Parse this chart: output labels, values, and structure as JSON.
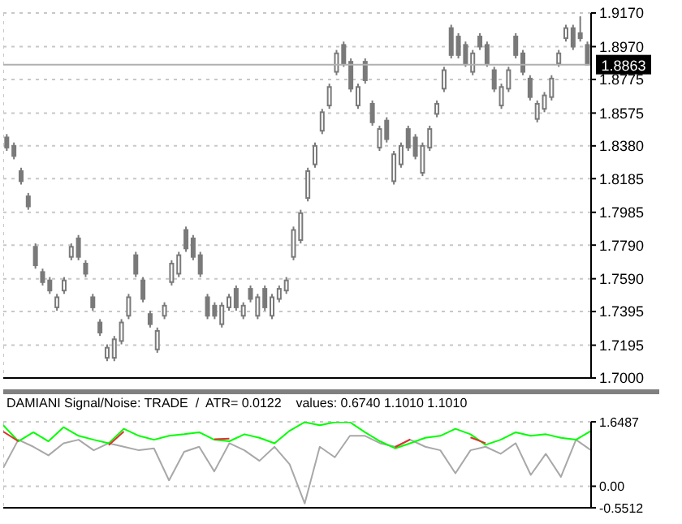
{
  "chart_data": [
    {
      "type": "candlestick",
      "color": "#7a7a7a",
      "categories": [
        null,
        null,
        null,
        null,
        null,
        null,
        null,
        null,
        null,
        null,
        null,
        null,
        null,
        null,
        null,
        null,
        null,
        null,
        null,
        null,
        null,
        null,
        null,
        null,
        null,
        null,
        null,
        null,
        null,
        null,
        null,
        null,
        null,
        null,
        null,
        null,
        null,
        null,
        null,
        null,
        null,
        null,
        null,
        null,
        null,
        null,
        null,
        null,
        null,
        null,
        null,
        null,
        null,
        null,
        null,
        null,
        null,
        null,
        null,
        null,
        null,
        null,
        null,
        null,
        null,
        null,
        null,
        null,
        null,
        null,
        null,
        null,
        null,
        null,
        null,
        null,
        null,
        null,
        null,
        null,
        null,
        null
      ],
      "ohlc": [
        [
          1.843,
          1.845,
          1.835,
          1.837
        ],
        [
          1.838,
          1.84,
          1.83,
          1.832
        ],
        [
          1.823,
          1.825,
          1.815,
          1.817
        ],
        [
          1.808,
          1.81,
          1.8,
          1.802
        ],
        [
          1.778,
          1.78,
          1.765,
          1.767
        ],
        [
          1.763,
          1.765,
          1.755,
          1.757
        ],
        [
          1.758,
          1.76,
          1.75,
          1.752
        ],
        [
          1.742,
          1.75,
          1.74,
          1.748
        ],
        [
          1.752,
          1.76,
          1.75,
          1.758
        ],
        [
          1.772,
          1.78,
          1.77,
          1.778
        ],
        [
          1.783,
          1.785,
          1.77,
          1.772
        ],
        [
          1.768,
          1.77,
          1.76,
          1.762
        ],
        [
          1.748,
          1.75,
          1.74,
          1.742
        ],
        [
          1.733,
          1.735,
          1.725,
          1.727
        ],
        [
          1.712,
          1.72,
          1.71,
          1.718
        ],
        [
          1.712,
          1.725,
          1.71,
          1.723
        ],
        [
          1.722,
          1.735,
          1.72,
          1.733
        ],
        [
          1.737,
          1.75,
          1.735,
          1.748
        ],
        [
          1.773,
          1.775,
          1.76,
          1.762
        ],
        [
          1.758,
          1.76,
          1.745,
          1.747
        ],
        [
          1.738,
          1.74,
          1.73,
          1.732
        ],
        [
          1.717,
          1.73,
          1.715,
          1.728
        ],
        [
          1.737,
          1.745,
          1.735,
          1.743
        ],
        [
          1.757,
          1.77,
          1.755,
          1.768
        ],
        [
          1.762,
          1.775,
          1.76,
          1.773
        ],
        [
          1.788,
          1.79,
          1.775,
          1.777
        ],
        [
          1.783,
          1.785,
          1.77,
          1.772
        ],
        [
          1.773,
          1.775,
          1.76,
          1.762
        ],
        [
          1.748,
          1.75,
          1.735,
          1.737
        ],
        [
          1.743,
          1.745,
          1.735,
          1.737
        ],
        [
          1.732,
          1.745,
          1.73,
          1.743
        ],
        [
          1.742,
          1.75,
          1.74,
          1.748
        ],
        [
          1.753,
          1.755,
          1.74,
          1.742
        ],
        [
          1.737,
          1.745,
          1.735,
          1.743
        ],
        [
          1.753,
          1.755,
          1.745,
          1.747
        ],
        [
          1.737,
          1.75,
          1.735,
          1.748
        ],
        [
          1.753,
          1.755,
          1.74,
          1.742
        ],
        [
          1.737,
          1.75,
          1.735,
          1.748
        ],
        [
          1.747,
          1.755,
          1.745,
          1.753
        ],
        [
          1.752,
          1.76,
          1.75,
          1.758
        ],
        [
          1.772,
          1.79,
          1.77,
          1.788
        ],
        [
          1.782,
          1.8,
          1.78,
          1.798
        ],
        [
          1.807,
          1.825,
          1.805,
          1.823
        ],
        [
          1.827,
          1.84,
          1.825,
          1.838
        ],
        [
          1.847,
          1.86,
          1.845,
          1.858
        ],
        [
          1.862,
          1.875,
          1.86,
          1.873
        ],
        [
          1.882,
          1.895,
          1.88,
          1.893
        ],
        [
          1.898,
          1.9,
          1.885,
          1.887
        ],
        [
          1.888,
          1.89,
          1.87,
          1.872
        ],
        [
          1.862,
          1.875,
          1.86,
          1.873
        ],
        [
          1.888,
          1.89,
          1.875,
          1.877
        ],
        [
          1.863,
          1.865,
          1.85,
          1.852
        ],
        [
          1.837,
          1.85,
          1.835,
          1.848
        ],
        [
          1.853,
          1.855,
          1.84,
          1.842
        ],
        [
          1.817,
          1.835,
          1.815,
          1.833
        ],
        [
          1.827,
          1.84,
          1.825,
          1.838
        ],
        [
          1.848,
          1.85,
          1.835,
          1.837
        ],
        [
          1.843,
          1.845,
          1.83,
          1.832
        ],
        [
          1.822,
          1.84,
          1.82,
          1.838
        ],
        [
          1.837,
          1.85,
          1.835,
          1.848
        ],
        [
          1.857,
          1.865,
          1.855,
          1.863
        ],
        [
          1.872,
          1.885,
          1.87,
          1.883
        ],
        [
          1.908,
          1.91,
          1.89,
          1.892
        ],
        [
          1.903,
          1.905,
          1.89,
          1.892
        ],
        [
          1.898,
          1.9,
          1.885,
          1.887
        ],
        [
          1.882,
          1.895,
          1.88,
          1.893
        ],
        [
          1.903,
          1.905,
          1.895,
          1.897
        ],
        [
          1.898,
          1.9,
          1.885,
          1.887
        ],
        [
          1.883,
          1.885,
          1.87,
          1.872
        ],
        [
          1.862,
          1.875,
          1.86,
          1.873
        ],
        [
          1.872,
          1.885,
          1.87,
          1.883
        ],
        [
          1.903,
          1.905,
          1.89,
          1.892
        ],
        [
          1.893,
          1.895,
          1.88,
          1.882
        ],
        [
          1.878,
          1.88,
          1.865,
          1.867
        ],
        [
          1.854,
          1.865,
          1.852,
          1.863
        ],
        [
          1.86,
          1.87,
          1.858,
          1.868
        ],
        [
          1.867,
          1.88,
          1.865,
          1.878
        ],
        [
          1.887,
          1.895,
          1.885,
          1.893
        ],
        [
          1.902,
          1.91,
          1.9,
          1.908
        ],
        [
          1.908,
          1.91,
          1.895,
          1.897
        ],
        [
          1.905,
          1.915,
          1.9,
          1.902
        ],
        [
          1.898,
          1.9,
          1.8863,
          1.8863
        ]
      ],
      "ylim": [
        1.7,
        1.917
      ],
      "yticks": [
        {
          "value": 1.917,
          "label": "1.9170"
        },
        {
          "value": 1.897,
          "label": "1.8970"
        },
        {
          "value": 1.8775,
          "label": "1.8775"
        },
        {
          "value": 1.8575,
          "label": "1.8575"
        },
        {
          "value": 1.838,
          "label": "1.8380"
        },
        {
          "value": 1.8185,
          "label": "1.8185"
        },
        {
          "value": 1.7985,
          "label": "1.7985"
        },
        {
          "value": 1.779,
          "label": "1.7790"
        },
        {
          "value": 1.759,
          "label": "1.7590"
        },
        {
          "value": 1.7395,
          "label": "1.7395"
        },
        {
          "value": 1.7195,
          "label": "1.7195"
        },
        {
          "value": 1.7,
          "label": "1.7000"
        }
      ],
      "ref_lines": [
        {
          "axis": "y",
          "value": 1.8863,
          "label": "1.8863",
          "color": "#b0b0b0"
        }
      ],
      "grid": true,
      "tick_labels": "y"
    },
    {
      "type": "line",
      "title": "DAMIANI Signal/Noise: TRADE  /  ATR= 0.0122    values: 0.6740 1.1010 1.1010",
      "categories": [
        null,
        null,
        null,
        null,
        null,
        null,
        null,
        null,
        null,
        null,
        null,
        null,
        null,
        null,
        null,
        null,
        null,
        null,
        null,
        null,
        null,
        null,
        null,
        null,
        null,
        null,
        null,
        null,
        null,
        null,
        null,
        null,
        null,
        null,
        null,
        null,
        null,
        null,
        null,
        null
      ],
      "series": [
        {
          "color": "#a8a8a8",
          "values": [
            0.47,
            1.19,
            1.01,
            0.79,
            1.1,
            1.19,
            0.92,
            1.1,
            1.01,
            0.92,
            0.97,
            0.15,
            0.88,
            1.01,
            0.38,
            1.1,
            0.92,
            0.65,
            1.01,
            0.56,
            -0.44,
            1.01,
            0.74,
            1.29,
            1.29,
            1.1,
            1.01,
            1.19,
            1.01,
            0.92,
            0.33,
            0.92,
            1.01,
            0.83,
            1.1,
            0.29,
            0.83,
            0.24,
            1.19,
            0.92
          ]
        },
        {
          "color": "#00ff00",
          "values": [
            1.56,
            1.15,
            1.38,
            1.15,
            1.51,
            1.29,
            1.19,
            1.1,
            1.47,
            1.29,
            1.19,
            1.29,
            1.33,
            1.38,
            1.19,
            1.15,
            1.33,
            1.24,
            1.1,
            1.42,
            1.64,
            1.56,
            1.64,
            1.64,
            1.38,
            1.15,
            0.97,
            1.1,
            1.24,
            1.29,
            1.47,
            1.33,
            1.06,
            1.19,
            1.38,
            1.29,
            1.33,
            1.24,
            1.19,
            1.42
          ]
        },
        {
          "color": "#e03030",
          "values": [
            1.4,
            1.15,
            null,
            null,
            null,
            null,
            null,
            1.05,
            1.4,
            null,
            null,
            null,
            null,
            null,
            1.2,
            1.22,
            null,
            null,
            null,
            null,
            null,
            null,
            null,
            null,
            null,
            null,
            1.0,
            1.2,
            null,
            null,
            null,
            1.25,
            1.1,
            null,
            null,
            null,
            null,
            null,
            null,
            null
          ]
        }
      ],
      "ylim": [
        -0.5512,
        1.6487
      ],
      "yticks": [
        {
          "value": 1.6487,
          "label": "1.6487"
        },
        {
          "value": 0,
          "label": "0.00"
        },
        {
          "value": -0.5512,
          "label": "-0.5512"
        }
      ],
      "grid": true,
      "tick_labels": "y",
      "marker": "none"
    }
  ]
}
